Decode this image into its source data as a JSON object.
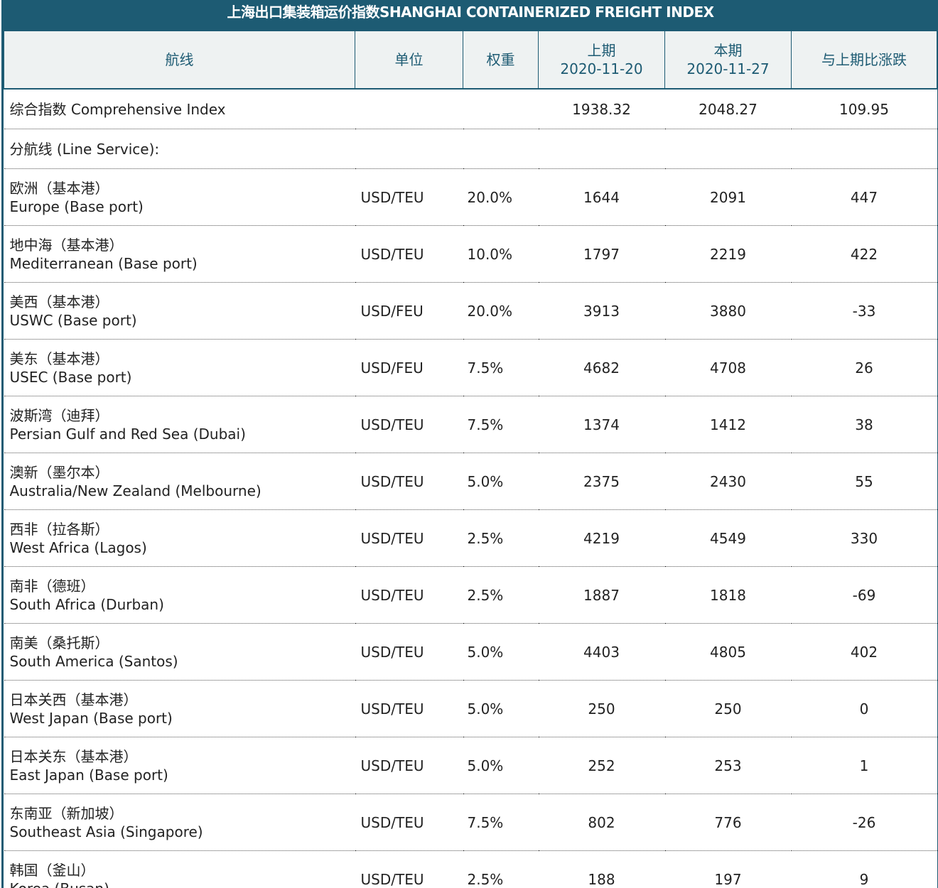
{
  "title": "上海出口集装箱运价指数SHANGHAI CONTAINERIZED FREIGHT INDEX",
  "columns": {
    "route": "航线",
    "unit": "单位",
    "weight": "权重",
    "prev_label": "上期",
    "prev_date": "2020-11-20",
    "curr_label": "本期",
    "curr_date": "2020-11-27",
    "change": "与上期比涨跌"
  },
  "comprehensive": {
    "label": "综合指数 Comprehensive Index",
    "prev": "1938.32",
    "curr": "2048.27",
    "change": "109.95"
  },
  "line_service_label": "分航线 (Line Service):",
  "rows": [
    {
      "cn": "欧洲（基本港）",
      "en": "Europe (Base port)",
      "unit": "USD/TEU",
      "weight": "20.0%",
      "prev": "1644",
      "curr": "2091",
      "change": "447"
    },
    {
      "cn": "地中海（基本港）",
      "en": "Mediterranean (Base port)",
      "unit": "USD/TEU",
      "weight": "10.0%",
      "prev": "1797",
      "curr": "2219",
      "change": "422"
    },
    {
      "cn": "美西（基本港）",
      "en": "USWC (Base port)",
      "unit": "USD/FEU",
      "weight": "20.0%",
      "prev": "3913",
      "curr": "3880",
      "change": "-33"
    },
    {
      "cn": "美东（基本港）",
      "en": "USEC (Base port)",
      "unit": "USD/FEU",
      "weight": "7.5%",
      "prev": "4682",
      "curr": "4708",
      "change": "26"
    },
    {
      "cn": "波斯湾（迪拜）",
      "en": "Persian Gulf and Red Sea (Dubai)",
      "unit": "USD/TEU",
      "weight": "7.5%",
      "prev": "1374",
      "curr": "1412",
      "change": "38"
    },
    {
      "cn": "澳新（墨尔本）",
      "en": "Australia/New Zealand (Melbourne)",
      "unit": "USD/TEU",
      "weight": "5.0%",
      "prev": "2375",
      "curr": "2430",
      "change": "55"
    },
    {
      "cn": "西非（拉各斯）",
      "en": "West Africa (Lagos)",
      "unit": "USD/TEU",
      "weight": "2.5%",
      "prev": "4219",
      "curr": "4549",
      "change": "330"
    },
    {
      "cn": "南非（德班）",
      "en": "South Africa (Durban)",
      "unit": "USD/TEU",
      "weight": "2.5%",
      "prev": "1887",
      "curr": "1818",
      "change": "-69"
    },
    {
      "cn": "南美（桑托斯）",
      "en": "South America (Santos)",
      "unit": "USD/TEU",
      "weight": "5.0%",
      "prev": "4403",
      "curr": "4805",
      "change": "402"
    },
    {
      "cn": "日本关西（基本港）",
      "en": "West Japan (Base port)",
      "unit": "USD/TEU",
      "weight": "5.0%",
      "prev": "250",
      "curr": "250",
      "change": "0"
    },
    {
      "cn": "日本关东（基本港）",
      "en": "East Japan (Base port)",
      "unit": "USD/TEU",
      "weight": "5.0%",
      "prev": "252",
      "curr": "253",
      "change": "1"
    },
    {
      "cn": "东南亚（新加坡）",
      "en": "Southeast Asia (Singapore)",
      "unit": "USD/TEU",
      "weight": "7.5%",
      "prev": "802",
      "curr": "776",
      "change": "-26"
    },
    {
      "cn": "韩国（釜山）",
      "en": "Korea (Busan)",
      "unit": "USD/TEU",
      "weight": "2.5%",
      "prev": "188",
      "curr": "197",
      "change": "9"
    }
  ]
}
